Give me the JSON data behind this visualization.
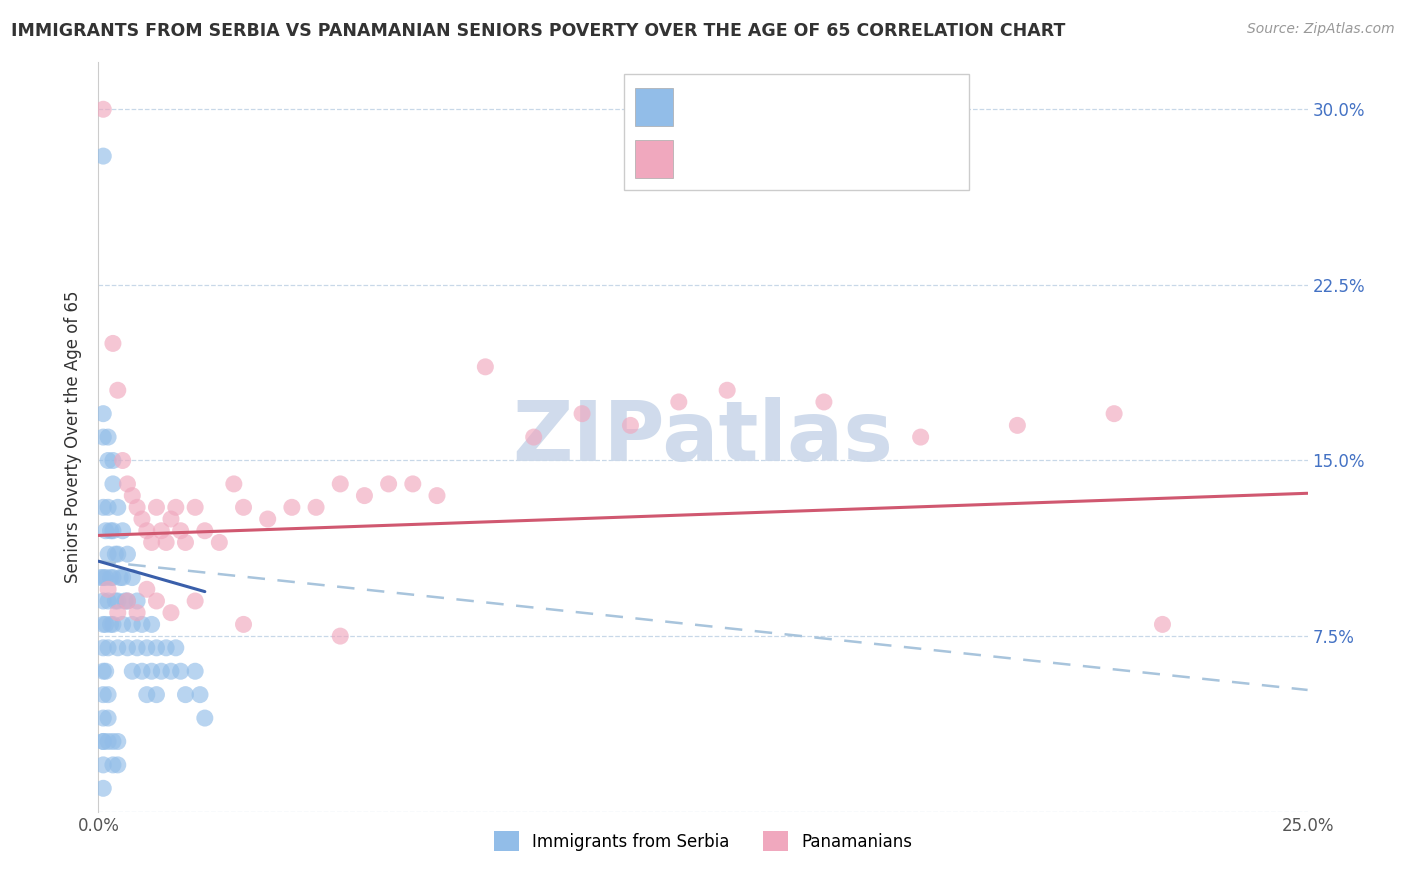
{
  "title": "IMMIGRANTS FROM SERBIA VS PANAMANIAN SENIORS POVERTY OVER THE AGE OF 65 CORRELATION CHART",
  "source": "Source: ZipAtlas.com",
  "ylabel": "Seniors Poverty Over the Age of 65",
  "xmin": 0.0,
  "xmax": 0.25,
  "ymin": 0.0,
  "ymax": 0.32,
  "color_blue": "#92BDE8",
  "color_pink": "#F0A8BE",
  "color_blue_line": "#3A5FAA",
  "color_pink_line": "#D05870",
  "color_dashed": "#A8C4DC",
  "watermark_color": "#CBD8EA",
  "serbia_x": [
    0.0005,
    0.001,
    0.001,
    0.001,
    0.001,
    0.001,
    0.001,
    0.001,
    0.001,
    0.0015,
    0.0015,
    0.0015,
    0.0015,
    0.002,
    0.002,
    0.002,
    0.002,
    0.002,
    0.002,
    0.0025,
    0.0025,
    0.0025,
    0.003,
    0.003,
    0.003,
    0.003,
    0.0035,
    0.0035,
    0.004,
    0.004,
    0.004,
    0.004,
    0.0045,
    0.005,
    0.005,
    0.005,
    0.0055,
    0.006,
    0.006,
    0.006,
    0.007,
    0.007,
    0.007,
    0.008,
    0.008,
    0.009,
    0.009,
    0.01,
    0.01,
    0.011,
    0.011,
    0.012,
    0.012,
    0.013,
    0.014,
    0.015,
    0.016,
    0.017,
    0.018,
    0.02,
    0.021,
    0.022,
    0.001,
    0.001,
    0.002,
    0.002,
    0.003,
    0.003,
    0.004,
    0.004,
    0.001,
    0.001,
    0.002,
    0.003,
    0.001,
    0.001,
    0.001
  ],
  "serbia_y": [
    0.1,
    0.28,
    0.13,
    0.1,
    0.09,
    0.08,
    0.07,
    0.06,
    0.05,
    0.12,
    0.1,
    0.08,
    0.06,
    0.15,
    0.13,
    0.11,
    0.09,
    0.07,
    0.05,
    0.12,
    0.1,
    0.08,
    0.14,
    0.12,
    0.1,
    0.08,
    0.11,
    0.09,
    0.13,
    0.11,
    0.09,
    0.07,
    0.1,
    0.12,
    0.1,
    0.08,
    0.09,
    0.11,
    0.09,
    0.07,
    0.1,
    0.08,
    0.06,
    0.09,
    0.07,
    0.08,
    0.06,
    0.07,
    0.05,
    0.08,
    0.06,
    0.07,
    0.05,
    0.06,
    0.07,
    0.06,
    0.07,
    0.06,
    0.05,
    0.06,
    0.05,
    0.04,
    0.04,
    0.03,
    0.04,
    0.03,
    0.03,
    0.02,
    0.03,
    0.02,
    0.16,
    0.17,
    0.16,
    0.15,
    0.02,
    0.01,
    0.03
  ],
  "panama_x": [
    0.001,
    0.003,
    0.004,
    0.005,
    0.006,
    0.007,
    0.008,
    0.009,
    0.01,
    0.011,
    0.012,
    0.013,
    0.014,
    0.015,
    0.016,
    0.017,
    0.018,
    0.02,
    0.022,
    0.025,
    0.028,
    0.03,
    0.035,
    0.04,
    0.045,
    0.05,
    0.055,
    0.06,
    0.065,
    0.07,
    0.08,
    0.09,
    0.1,
    0.11,
    0.12,
    0.13,
    0.15,
    0.17,
    0.19,
    0.21,
    0.002,
    0.004,
    0.006,
    0.008,
    0.01,
    0.012,
    0.015,
    0.02,
    0.03,
    0.05,
    0.22
  ],
  "panama_y": [
    0.3,
    0.2,
    0.18,
    0.15,
    0.14,
    0.135,
    0.13,
    0.125,
    0.12,
    0.115,
    0.13,
    0.12,
    0.115,
    0.125,
    0.13,
    0.12,
    0.115,
    0.13,
    0.12,
    0.115,
    0.14,
    0.13,
    0.125,
    0.13,
    0.13,
    0.14,
    0.135,
    0.14,
    0.14,
    0.135,
    0.19,
    0.16,
    0.17,
    0.165,
    0.175,
    0.18,
    0.175,
    0.16,
    0.165,
    0.17,
    0.095,
    0.085,
    0.09,
    0.085,
    0.095,
    0.09,
    0.085,
    0.09,
    0.08,
    0.075,
    0.08
  ]
}
